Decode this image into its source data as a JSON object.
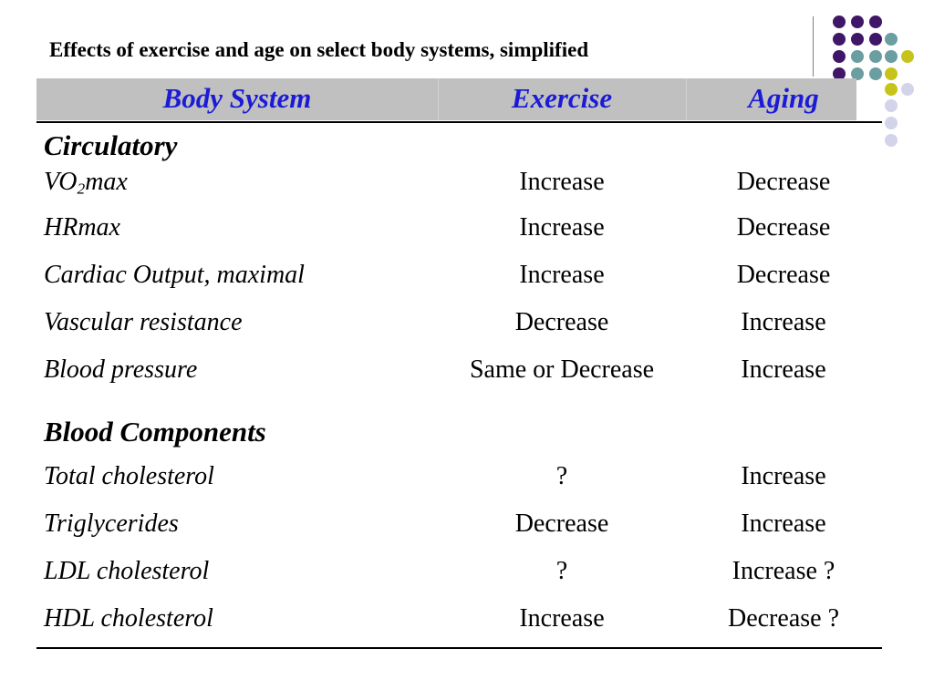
{
  "title": "Effects of exercise and age on select body systems, simplified",
  "header": {
    "body_system": "Body System",
    "exercise": "Exercise",
    "aging": "Aging"
  },
  "sections": [
    {
      "title": "Circulatory",
      "rows": [
        {
          "name_pre": "VO",
          "name_sub": "2",
          "name_post": "max",
          "exercise": "Increase",
          "aging": "Decrease"
        },
        {
          "name": "HRmax",
          "exercise": "Increase",
          "aging": "Decrease"
        },
        {
          "name": "Cardiac Output, maximal",
          "exercise": "Increase",
          "aging": "Decrease"
        },
        {
          "name": "Vascular resistance",
          "exercise": "Decrease",
          "aging": "Increase"
        },
        {
          "name": "Blood pressure",
          "exercise": "Same or Decrease",
          "aging": "Increase"
        }
      ]
    },
    {
      "title": "Blood Components",
      "rows": [
        {
          "name": "Total cholesterol",
          "exercise": "?",
          "aging": "Increase"
        },
        {
          "name": "Triglycerides",
          "exercise": "Decrease",
          "aging": "Increase"
        },
        {
          "name": "LDL cholesterol",
          "exercise": "?",
          "aging": "Increase ?"
        },
        {
          "name": "HDL cholesterol",
          "exercise": "Increase",
          "aging": "Decrease ?"
        }
      ]
    }
  ],
  "decor": {
    "dot_colors": {
      "purple": "#3f1668",
      "teal": "#6a9ea0",
      "olive": "#c6c41a",
      "lavender": "#d3d3ea"
    }
  }
}
